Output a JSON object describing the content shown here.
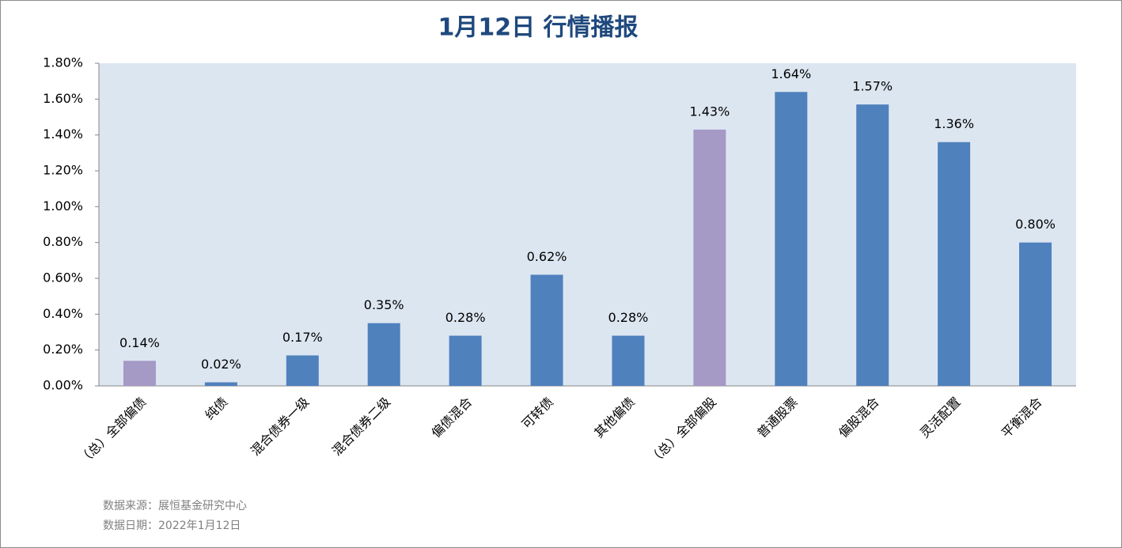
{
  "chart_data": {
    "type": "bar",
    "title": "1月12日  行情播报",
    "categories": [
      "（总）全部偏债",
      "纯债",
      "混合债券一级",
      "混合债券二级",
      "偏债混合",
      "可转债",
      "其他偏债",
      "（总）全部偏股",
      "普通股票",
      "偏股混合",
      "灵活配置",
      "平衡混合"
    ],
    "values": [
      0.14,
      0.02,
      0.17,
      0.35,
      0.28,
      0.62,
      0.28,
      1.43,
      1.64,
      1.57,
      1.36,
      0.8
    ],
    "value_labels": [
      "0.14%",
      "0.02%",
      "0.17%",
      "0.35%",
      "0.28%",
      "0.62%",
      "0.28%",
      "1.43%",
      "1.64%",
      "1.57%",
      "1.36%",
      "0.80%"
    ],
    "colors": [
      "#a599c6",
      "#4f81bd",
      "#4f81bd",
      "#4f81bd",
      "#4f81bd",
      "#4f81bd",
      "#4f81bd",
      "#a599c6",
      "#4f81bd",
      "#4f81bd",
      "#4f81bd",
      "#4f81bd"
    ],
    "ylim": [
      0,
      1.8
    ],
    "yticks": [
      {
        "value": 0,
        "label": "0.00%"
      },
      {
        "value": 0.2,
        "label": "0.20%"
      },
      {
        "value": 0.4,
        "label": "0.40%"
      },
      {
        "value": 0.6,
        "label": "0.60%"
      },
      {
        "value": 0.8,
        "label": "0.80%"
      },
      {
        "value": 1.0,
        "label": "1.00%"
      },
      {
        "value": 1.2,
        "label": "1.20%"
      },
      {
        "value": 1.4,
        "label": "1.40%"
      },
      {
        "value": 1.6,
        "label": "1.60%"
      },
      {
        "value": 1.8,
        "label": "1.80%"
      }
    ],
    "grid": false,
    "notes": [
      "数据来源：展恒基金研究中心",
      "数据日期：2022年1月12日"
    ]
  }
}
